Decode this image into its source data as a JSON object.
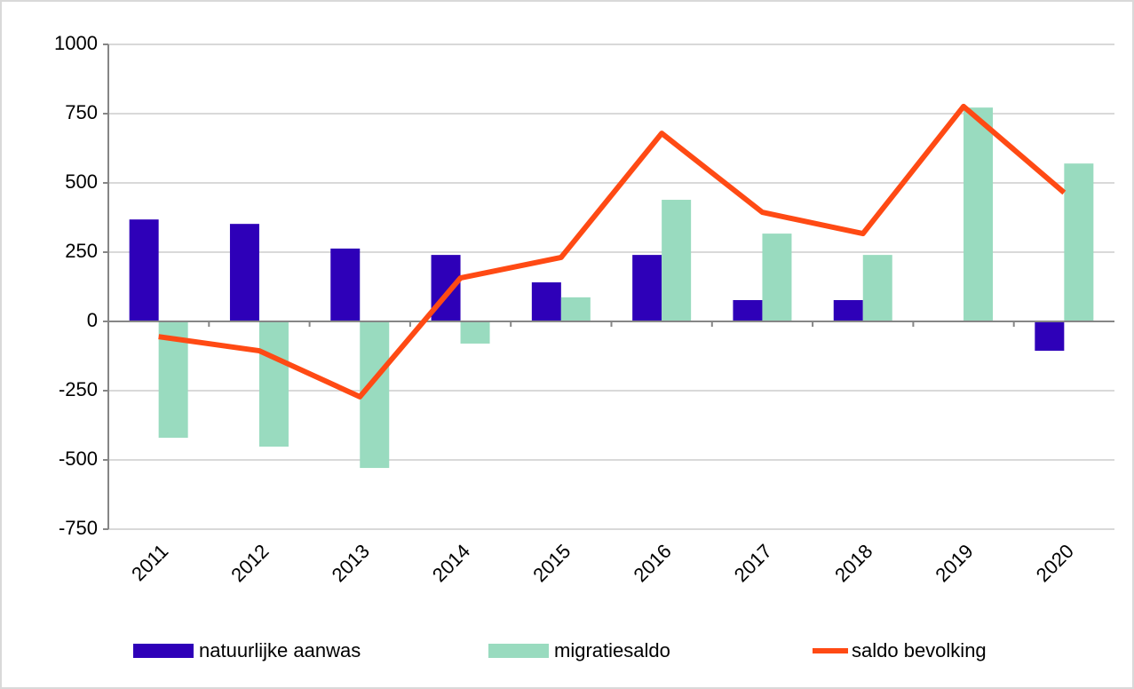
{
  "chart_data": {
    "type": "bar",
    "categories": [
      "2011",
      "2012",
      "2013",
      "2014",
      "2015",
      "2016",
      "2017",
      "2018",
      "2019",
      "2020"
    ],
    "series": [
      {
        "name": "natuurlijke aanwas",
        "type": "bar",
        "color": "#2e00b8",
        "values": [
          368,
          352,
          263,
          240,
          141,
          240,
          77,
          77,
          0,
          -106
        ]
      },
      {
        "name": "migratiesaldo",
        "type": "bar",
        "color": "#99dbbf",
        "values": [
          -420,
          -452,
          -529,
          -80,
          87,
          439,
          317,
          240,
          772,
          570
        ]
      },
      {
        "name": "saldo bevolking",
        "type": "line",
        "color": "#ff4a14",
        "values": [
          -55,
          -106,
          -272,
          157,
          231,
          679,
          394,
          317,
          776,
          465
        ]
      }
    ],
    "ylim": [
      -750,
      1000
    ],
    "yticks": [
      -750,
      -500,
      -250,
      0,
      250,
      500,
      750,
      1000
    ],
    "grid": true,
    "legend": "bottom"
  }
}
